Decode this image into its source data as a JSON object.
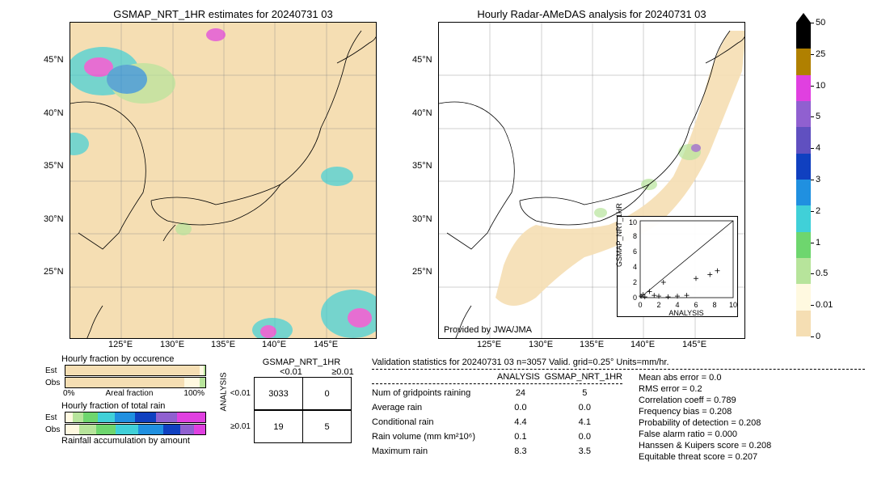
{
  "meta": {
    "dataset": "GSMAP_NRT_1HR",
    "date": "20240731 03",
    "n": 3057,
    "valid_grid": "0.25°",
    "units": "mm/hr"
  },
  "left_map": {
    "title": "GSMAP_NRT_1HR estimates for 20240731 03",
    "xlabel_ticks": [
      "125°E",
      "130°E",
      "135°E",
      "140°E",
      "145°E"
    ],
    "ylabel_ticks": [
      "25°N",
      "30°N",
      "35°N",
      "40°N",
      "45°N"
    ],
    "xlim": [
      120,
      150
    ],
    "ylim": [
      20,
      50
    ],
    "bg_color": "#f5deb3",
    "grid_color": "#808080"
  },
  "right_map": {
    "title": "Hourly Radar-AMeDAS analysis for 20240731 03",
    "xlabel_ticks": [
      "125°E",
      "130°E",
      "135°E",
      "140°E",
      "145°E"
    ],
    "ylabel_ticks": [
      "25°N",
      "30°N",
      "35°N",
      "40°N",
      "45°N"
    ],
    "attribution": "Provided by JWA/JMA"
  },
  "scatter_inset": {
    "xlabel": "ANALYSIS",
    "ylabel": "GSMAP_NRT_1HR",
    "xlim": [
      0,
      10
    ],
    "ylim": [
      0,
      10
    ],
    "ticks": [
      0,
      2,
      4,
      6,
      8,
      10
    ],
    "points": [
      [
        0.1,
        0.2
      ],
      [
        0.3,
        0.4
      ],
      [
        0.5,
        0.1
      ],
      [
        1.0,
        0.8
      ],
      [
        1.5,
        0.3
      ],
      [
        2.0,
        0.2
      ],
      [
        3.0,
        0.1
      ],
      [
        4.0,
        0.2
      ],
      [
        5.0,
        0.3
      ],
      [
        7.5,
        3.0
      ],
      [
        8.3,
        3.5
      ],
      [
        6.0,
        2.5
      ],
      [
        2.5,
        2.0
      ]
    ]
  },
  "colorbar": {
    "values": [
      "0",
      "0.01",
      "0.5",
      "1",
      "2",
      "3",
      "4",
      "5",
      "10",
      "25",
      "50"
    ],
    "colors": [
      "#f5deb3",
      "#fff9e0",
      "#b7e49b",
      "#6ed66e",
      "#40d0d8",
      "#2090e0",
      "#1040c0",
      "#6050c0",
      "#9060d0",
      "#e040e0",
      "#b08000",
      "#000000"
    ]
  },
  "occ_bars": {
    "title": "Hourly fraction by occurence",
    "axis_label": "Areal fraction",
    "axis_0": "0%",
    "axis_100": "100%",
    "rows": [
      {
        "label": "Est",
        "segments": [
          {
            "c": "#f5deb3",
            "w": 96
          },
          {
            "c": "#fff9e0",
            "w": 3
          },
          {
            "c": "#b7e49b",
            "w": 1
          }
        ]
      },
      {
        "label": "Obs",
        "segments": [
          {
            "c": "#f5deb3",
            "w": 85
          },
          {
            "c": "#fff9e0",
            "w": 11
          },
          {
            "c": "#b7e49b",
            "w": 4
          }
        ]
      }
    ]
  },
  "rain_bars": {
    "title": "Hourly fraction of total rain",
    "footer": "Rainfall accumulation by amount",
    "rows": [
      {
        "label": "Est",
        "segments": [
          {
            "c": "#fff9e0",
            "w": 5
          },
          {
            "c": "#b7e49b",
            "w": 8
          },
          {
            "c": "#6ed66e",
            "w": 10
          },
          {
            "c": "#40d0d8",
            "w": 12
          },
          {
            "c": "#2090e0",
            "w": 15
          },
          {
            "c": "#1040c0",
            "w": 15
          },
          {
            "c": "#9060d0",
            "w": 15
          },
          {
            "c": "#e040e0",
            "w": 20
          }
        ]
      },
      {
        "label": "Obs",
        "segments": [
          {
            "c": "#fff9e0",
            "w": 10
          },
          {
            "c": "#b7e49b",
            "w": 12
          },
          {
            "c": "#6ed66e",
            "w": 14
          },
          {
            "c": "#40d0d8",
            "w": 16
          },
          {
            "c": "#2090e0",
            "w": 18
          },
          {
            "c": "#1040c0",
            "w": 12
          },
          {
            "c": "#9060d0",
            "w": 10
          },
          {
            "c": "#e040e0",
            "w": 8
          }
        ]
      }
    ]
  },
  "contingency": {
    "col_header": "GSMAP_NRT_1HR",
    "row_header": "ANALYSIS",
    "col_labels": [
      "<0.01",
      "≥0.01"
    ],
    "row_labels": [
      "<0.01",
      "≥0.01"
    ],
    "cells": [
      [
        3033,
        0
      ],
      [
        19,
        5
      ]
    ]
  },
  "validation_header": "Validation statistics for 20240731 03  n=3057 Valid. grid=0.25° Units=mm/hr.",
  "table_stats": {
    "cols": [
      "ANALYSIS",
      "GSMAP_NRT_1HR"
    ],
    "rows": [
      {
        "label": "Num of gridpoints raining",
        "a": "24",
        "b": "5"
      },
      {
        "label": "Average rain",
        "a": "0.0",
        "b": "0.0"
      },
      {
        "label": "Conditional rain",
        "a": "4.4",
        "b": "4.1"
      },
      {
        "label": "Rain volume (mm km²10⁶)",
        "a": "0.1",
        "b": "0.0"
      },
      {
        "label": "Maximum rain",
        "a": "8.3",
        "b": "3.5"
      }
    ]
  },
  "scalar_stats": [
    {
      "label": "Mean abs error =",
      "val": "0.0"
    },
    {
      "label": "RMS error =",
      "val": "0.2"
    },
    {
      "label": "Correlation coeff =",
      "val": "0.789"
    },
    {
      "label": "Frequency bias =",
      "val": "0.208"
    },
    {
      "label": "Probability of detection =",
      "val": "0.208"
    },
    {
      "label": "False alarm ratio =",
      "val": "0.000"
    },
    {
      "label": "Hanssen & Kuipers score =",
      "val": "0.208"
    },
    {
      "label": "Equitable threat score =",
      "val": "0.207"
    }
  ]
}
